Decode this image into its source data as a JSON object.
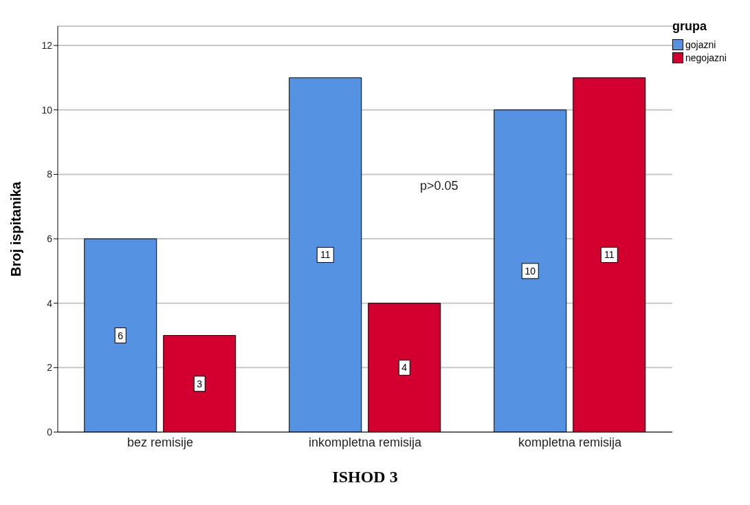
{
  "chart_data": {
    "type": "bar",
    "title": "ISHOD 3",
    "ylabel": "Broj ispitanika",
    "legend_title": "grupa",
    "categories": [
      "bez remisije",
      "inkompletna remisija",
      "kompletna remisija"
    ],
    "series": [
      {
        "name": "gojazni",
        "color": "#5592e2",
        "values": [
          6,
          11,
          10
        ]
      },
      {
        "name": "negojazni",
        "color": "#d3002f",
        "values": [
          3,
          4,
          11
        ]
      }
    ],
    "ylim": [
      0,
      12.6
    ],
    "yticks": [
      0,
      2,
      4,
      6,
      8,
      10,
      12
    ],
    "grid": "y",
    "legend": "top right",
    "data_labels": true,
    "annotations": [
      "p>0.05"
    ]
  }
}
